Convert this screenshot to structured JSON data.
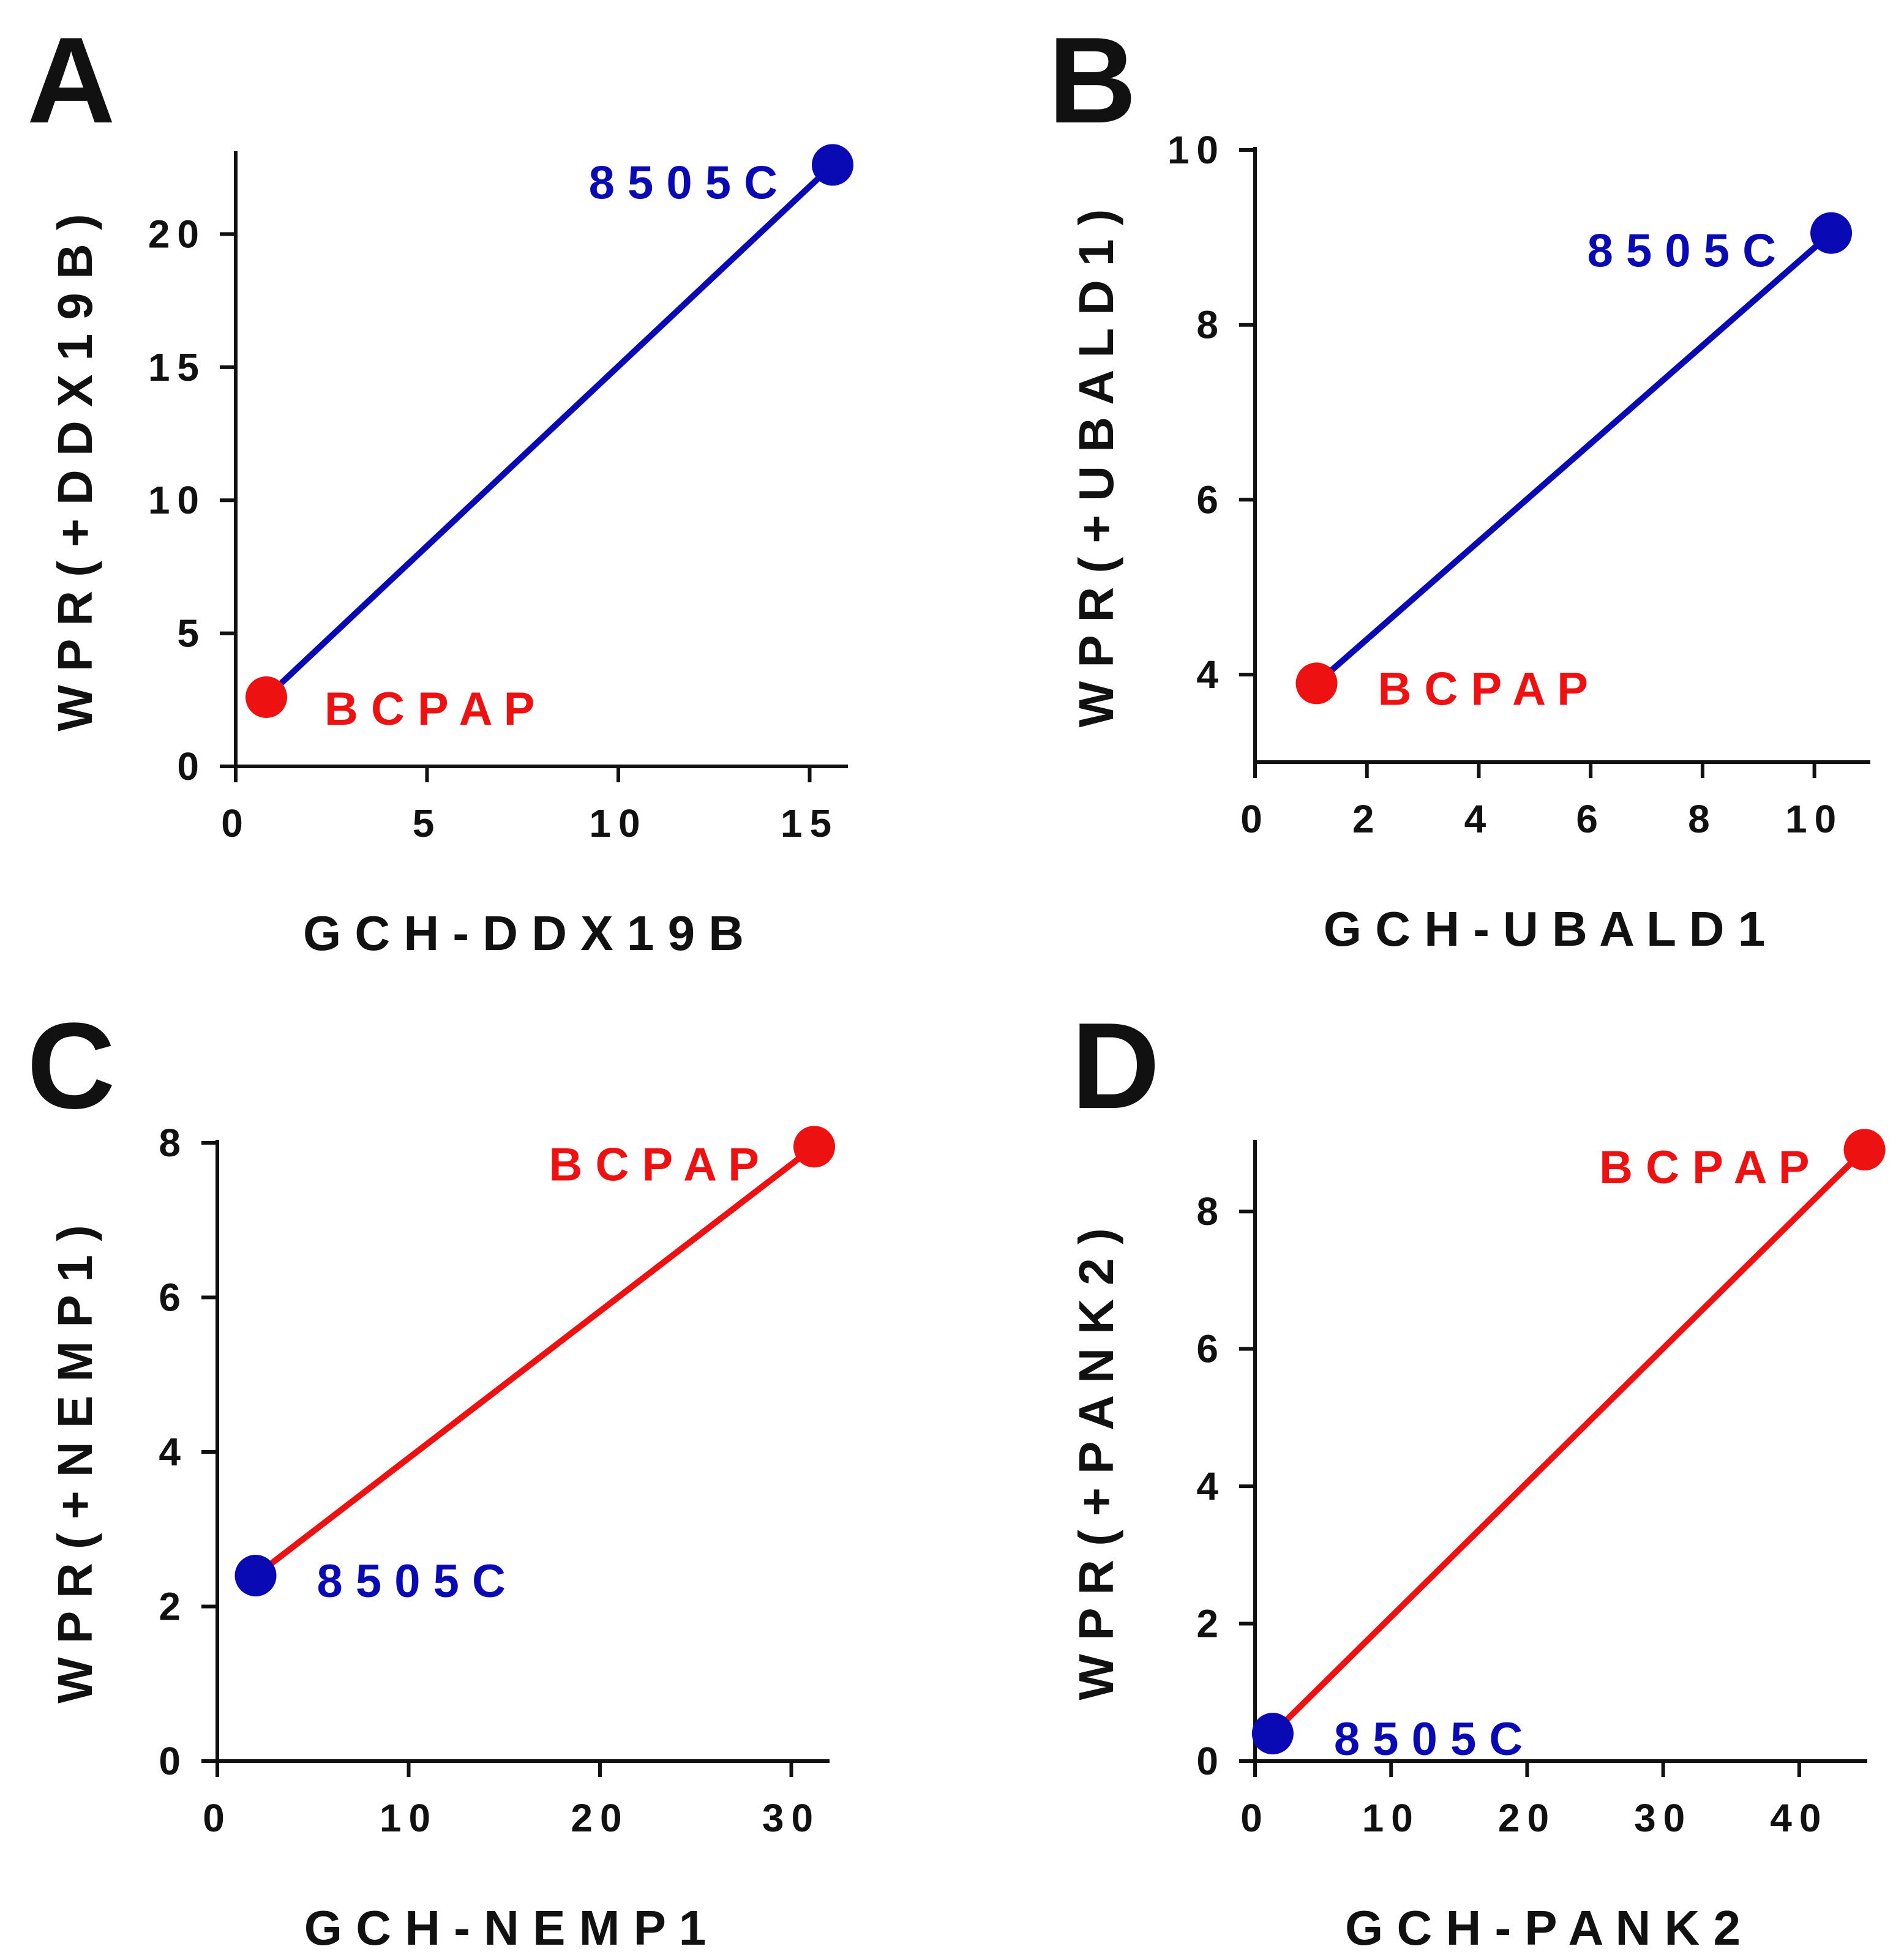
{
  "colors": {
    "blue": "#0a0ab4",
    "red": "#ee1111",
    "axis": "#111111"
  },
  "chart_data": [
    {
      "panel": "A",
      "type": "line",
      "xlabel": "GCH-DDX19B",
      "ylabel": "WPR(+DDX19B)",
      "xlim": [
        0,
        16
      ],
      "ylim": [
        0,
        23
      ],
      "xticks": [
        0,
        5,
        10,
        15
      ],
      "yticks": [
        0,
        5,
        10,
        15,
        20
      ],
      "line_color": "blue",
      "points": [
        {
          "name": "BCPAP",
          "x": 0.8,
          "y": 2.6,
          "color": "red",
          "label_pos": "right-below"
        },
        {
          "name": "8505C",
          "x": 15.6,
          "y": 22.6,
          "color": "blue",
          "label_pos": "left"
        }
      ]
    },
    {
      "panel": "B",
      "type": "line",
      "xlabel": "GCH-UBALD1",
      "ylabel": "WPR(+UBALD1)",
      "xlim": [
        0,
        11
      ],
      "ylim": [
        3,
        10
      ],
      "xticks": [
        0,
        2,
        4,
        6,
        8,
        10
      ],
      "yticks": [
        4,
        6,
        8,
        10
      ],
      "line_color": "blue",
      "points": [
        {
          "name": "BCPAP",
          "x": 1.1,
          "y": 3.9,
          "color": "red",
          "label_pos": "right"
        },
        {
          "name": "8505C",
          "x": 10.3,
          "y": 9.05,
          "color": "blue",
          "label_pos": "left"
        }
      ]
    },
    {
      "panel": "C",
      "type": "line",
      "xlabel": "GCH-NEMP1",
      "ylabel": "WPR(+NEMP1)",
      "xlim": [
        0,
        32
      ],
      "ylim": [
        0,
        8
      ],
      "xticks": [
        0,
        10,
        20,
        30
      ],
      "yticks": [
        0,
        2,
        4,
        6,
        8
      ],
      "line_color": "red",
      "points": [
        {
          "name": "8505C",
          "x": 2.0,
          "y": 2.4,
          "color": "blue",
          "label_pos": "right"
        },
        {
          "name": "BCPAP",
          "x": 31.2,
          "y": 7.95,
          "color": "red",
          "label_pos": "left"
        }
      ]
    },
    {
      "panel": "D",
      "type": "line",
      "xlabel": "GCH-PANK2",
      "ylabel": "WPR(+PANK2)",
      "xlim": [
        0,
        45
      ],
      "ylim": [
        0,
        9
      ],
      "xticks": [
        0,
        10,
        20,
        30,
        40
      ],
      "yticks": [
        0,
        2,
        4,
        6,
        8
      ],
      "line_color": "red",
      "points": [
        {
          "name": "8505C",
          "x": 1.3,
          "y": 0.4,
          "color": "blue",
          "label_pos": "right"
        },
        {
          "name": "BCPAP",
          "x": 44.8,
          "y": 8.9,
          "color": "red",
          "label_pos": "left"
        }
      ]
    }
  ]
}
